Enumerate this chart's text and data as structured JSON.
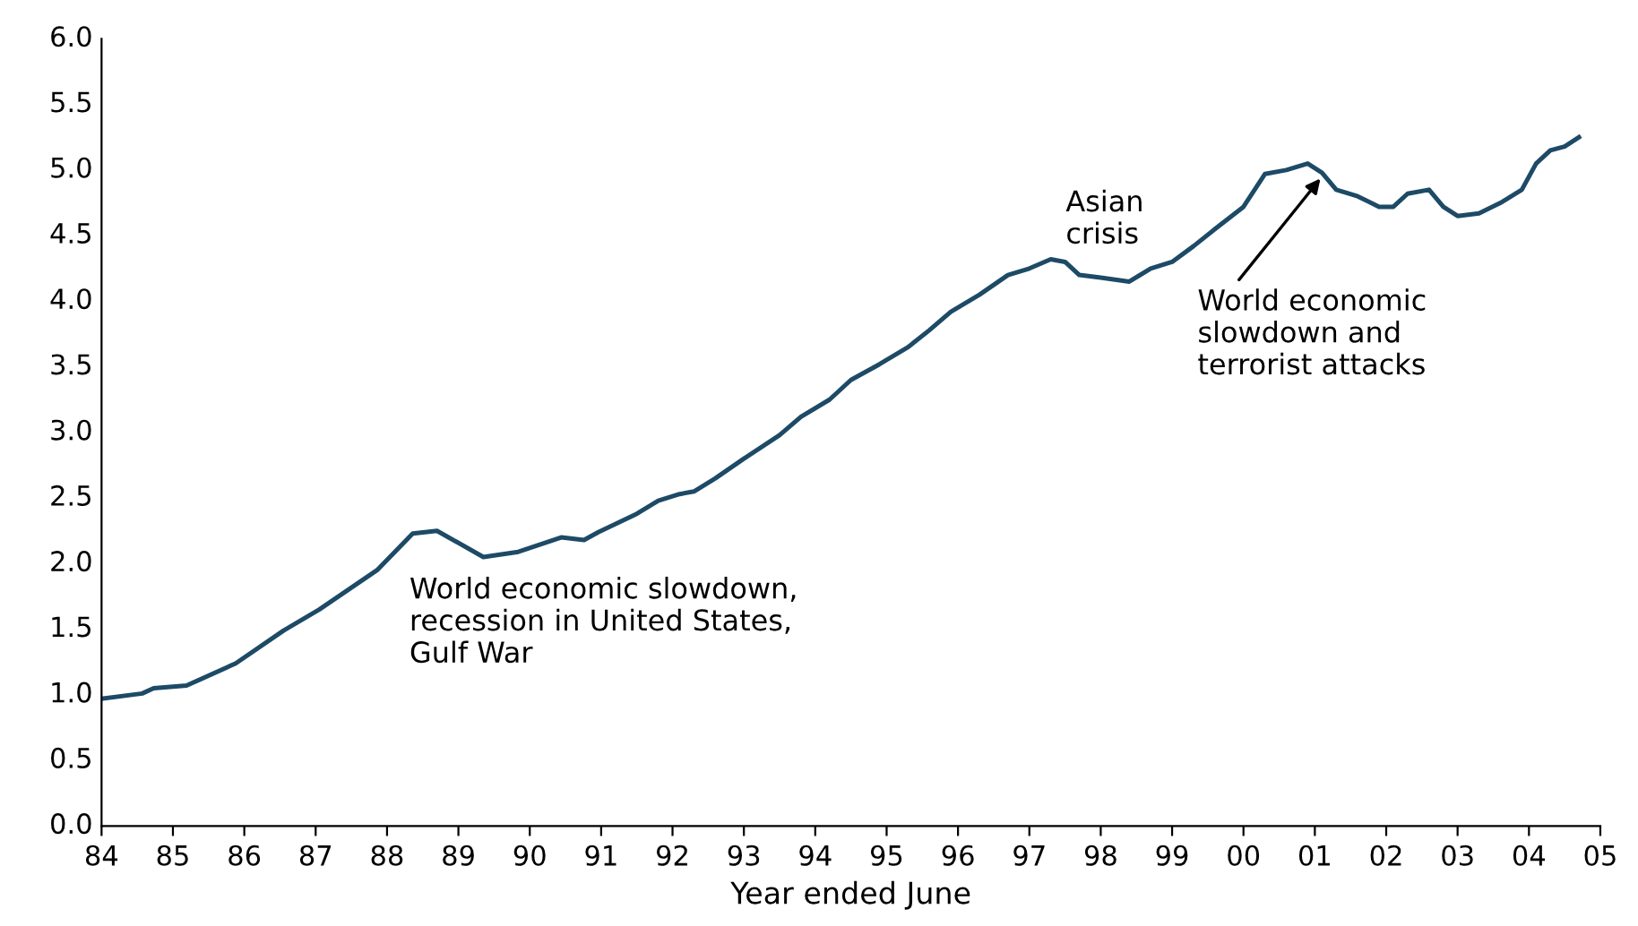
{
  "chart_data": {
    "type": "line",
    "xlabel": "Year ended June",
    "series": [
      {
        "color": "#1d4a66",
        "x": [
          1984.0,
          1984.57,
          1984.73,
          1985.19,
          1985.88,
          1986.55,
          1987.05,
          1987.86,
          1988.36,
          1988.7,
          1989.35,
          1989.84,
          1990.44,
          1990.76,
          1990.96,
          1991.5,
          1991.8,
          1992.1,
          1992.3,
          1992.6,
          1993.0,
          1993.5,
          1993.8,
          1994.2,
          1994.5,
          1994.9,
          1995.3,
          1995.6,
          1995.9,
          1996.3,
          1996.7,
          1997.0,
          1997.3,
          1997.5,
          1997.7,
          1998.0,
          1998.4,
          1998.7,
          1999.0,
          1999.3,
          1999.6,
          2000.0,
          2000.3,
          2000.6,
          2000.9,
          2001.1,
          2001.3,
          2001.6,
          2001.9,
          2002.1,
          2002.3,
          2002.6,
          2002.8,
          2003.0,
          2003.3,
          2003.6,
          2003.9,
          2004.1,
          2004.3,
          2004.5,
          2004.7
        ],
        "values": [
          0.97,
          1.01,
          1.05,
          1.07,
          1.24,
          1.49,
          1.65,
          1.95,
          2.23,
          2.25,
          2.05,
          2.09,
          2.2,
          2.18,
          2.24,
          2.38,
          2.48,
          2.53,
          2.55,
          2.65,
          2.8,
          2.98,
          3.12,
          3.25,
          3.4,
          3.52,
          3.65,
          3.78,
          3.92,
          4.05,
          4.2,
          4.25,
          4.32,
          4.3,
          4.2,
          4.18,
          4.15,
          4.25,
          4.3,
          4.42,
          4.55,
          4.72,
          4.97,
          5.0,
          5.05,
          4.98,
          4.85,
          4.8,
          4.72,
          4.72,
          4.82,
          4.85,
          4.72,
          4.65,
          4.67,
          4.75,
          4.85,
          5.05,
          5.15,
          5.18,
          5.25
        ]
      }
    ],
    "xlim": [
      1984,
      2005
    ],
    "xticks": [
      {
        "value": 1984,
        "label": "84"
      },
      {
        "value": 1985,
        "label": "85"
      },
      {
        "value": 1986,
        "label": "86"
      },
      {
        "value": 1987,
        "label": "87"
      },
      {
        "value": 1988,
        "label": "88"
      },
      {
        "value": 1989,
        "label": "89"
      },
      {
        "value": 1990,
        "label": "90"
      },
      {
        "value": 1991,
        "label": "91"
      },
      {
        "value": 1992,
        "label": "92"
      },
      {
        "value": 1993,
        "label": "93"
      },
      {
        "value": 1994,
        "label": "94"
      },
      {
        "value": 1995,
        "label": "95"
      },
      {
        "value": 1996,
        "label": "96"
      },
      {
        "value": 1997,
        "label": "97"
      },
      {
        "value": 1998,
        "label": "98"
      },
      {
        "value": 1999,
        "label": "99"
      },
      {
        "value": 2000,
        "label": "00"
      },
      {
        "value": 2001,
        "label": "01"
      },
      {
        "value": 2002,
        "label": "02"
      },
      {
        "value": 2003,
        "label": "03"
      },
      {
        "value": 2004,
        "label": "04"
      },
      {
        "value": 2005,
        "label": "05"
      }
    ],
    "ylim": [
      0,
      6
    ],
    "yticks": [
      {
        "value": 0,
        "label": "0.0"
      },
      {
        "value": 0.5,
        "label": "0.5"
      },
      {
        "value": 1,
        "label": "1.0"
      },
      {
        "value": 1.5,
        "label": "1.5"
      },
      {
        "value": 2,
        "label": "2.0"
      },
      {
        "value": 2.5,
        "label": "2.5"
      },
      {
        "value": 3,
        "label": "3.0"
      },
      {
        "value": 3.5,
        "label": "3.5"
      },
      {
        "value": 4,
        "label": "4.0"
      },
      {
        "value": 4.5,
        "label": "4.5"
      },
      {
        "value": 5,
        "label": "5.0"
      },
      {
        "value": 5.5,
        "label": "5.5"
      },
      {
        "value": 6,
        "label": "6.0"
      }
    ],
    "annotations": [
      {
        "text": "World economic slowdown,\nrecession in United States,\nGulf War",
        "x": 1989.5,
        "y": 2.09
      },
      {
        "text": "Asian\ncrisis",
        "x": 1997.3,
        "y": 4.32
      },
      {
        "text": "World economic\nslowdown and\nterrorist attacks",
        "x": 2001.1,
        "y": 4.95
      }
    ],
    "grid": false,
    "marker": "none",
    "line_style": "solid"
  }
}
